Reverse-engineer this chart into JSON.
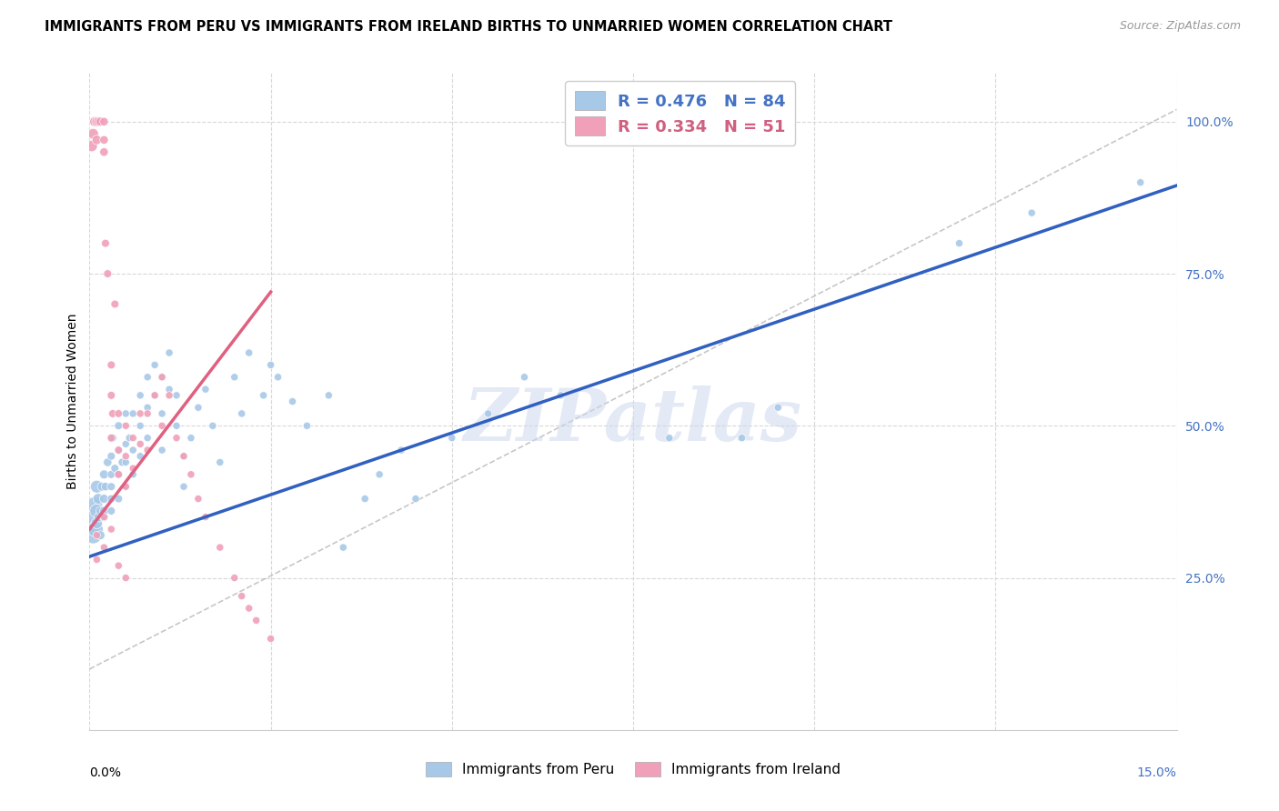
{
  "title": "IMMIGRANTS FROM PERU VS IMMIGRANTS FROM IRELAND BIRTHS TO UNMARRIED WOMEN CORRELATION CHART",
  "source": "Source: ZipAtlas.com",
  "ylabel": "Births to Unmarried Women",
  "xmin": 0.0,
  "xmax": 0.15,
  "ymin": 0.0,
  "ymax": 1.08,
  "blue_color": "#a8c8e8",
  "pink_color": "#f0a0b8",
  "blue_line_color": "#3060c0",
  "pink_line_color": "#e06080",
  "blue_R": 0.476,
  "blue_N": 84,
  "pink_R": 0.334,
  "pink_N": 51,
  "watermark": "ZIPatlas",
  "grid_color": "#d8d8d8",
  "blue_x": [
    0.0003,
    0.0005,
    0.0007,
    0.0008,
    0.001,
    0.001,
    0.001,
    0.0012,
    0.0013,
    0.0015,
    0.0015,
    0.0017,
    0.002,
    0.002,
    0.002,
    0.002,
    0.0022,
    0.0025,
    0.003,
    0.003,
    0.003,
    0.003,
    0.003,
    0.0032,
    0.0035,
    0.004,
    0.004,
    0.004,
    0.004,
    0.0045,
    0.005,
    0.005,
    0.005,
    0.005,
    0.0055,
    0.006,
    0.006,
    0.006,
    0.007,
    0.007,
    0.007,
    0.008,
    0.008,
    0.008,
    0.009,
    0.009,
    0.01,
    0.01,
    0.01,
    0.011,
    0.011,
    0.012,
    0.012,
    0.013,
    0.013,
    0.014,
    0.015,
    0.016,
    0.017,
    0.018,
    0.02,
    0.021,
    0.022,
    0.024,
    0.025,
    0.026,
    0.028,
    0.03,
    0.033,
    0.035,
    0.038,
    0.04,
    0.043,
    0.045,
    0.05,
    0.055,
    0.06,
    0.065,
    0.08,
    0.09,
    0.095,
    0.12,
    0.13,
    0.145
  ],
  "blue_y": [
    0.35,
    0.32,
    0.37,
    0.33,
    0.36,
    0.4,
    0.34,
    0.38,
    0.35,
    0.32,
    0.36,
    0.4,
    0.38,
    0.35,
    0.42,
    0.36,
    0.4,
    0.44,
    0.38,
    0.42,
    0.45,
    0.36,
    0.4,
    0.48,
    0.43,
    0.5,
    0.46,
    0.42,
    0.38,
    0.44,
    0.52,
    0.47,
    0.44,
    0.4,
    0.48,
    0.52,
    0.46,
    0.42,
    0.55,
    0.5,
    0.45,
    0.58,
    0.53,
    0.48,
    0.6,
    0.55,
    0.58,
    0.52,
    0.46,
    0.62,
    0.56,
    0.55,
    0.5,
    0.45,
    0.4,
    0.48,
    0.53,
    0.56,
    0.5,
    0.44,
    0.58,
    0.52,
    0.62,
    0.55,
    0.6,
    0.58,
    0.54,
    0.5,
    0.55,
    0.3,
    0.38,
    0.42,
    0.46,
    0.38,
    0.48,
    0.52,
    0.58,
    0.55,
    0.48,
    0.48,
    0.53,
    0.8,
    0.85,
    0.9
  ],
  "blue_sizes": [
    200,
    180,
    160,
    150,
    120,
    100,
    80,
    70,
    60,
    50,
    50,
    50,
    50,
    50,
    50,
    50,
    45,
    45,
    40,
    40,
    40,
    40,
    40,
    40,
    40,
    40,
    40,
    40,
    40,
    40,
    35,
    35,
    35,
    35,
    35,
    35,
    35,
    35,
    35,
    35,
    35,
    35,
    35,
    35,
    35,
    35,
    35,
    35,
    35,
    35,
    35,
    35,
    35,
    35,
    35,
    35,
    35,
    35,
    35,
    35,
    35,
    35,
    35,
    35,
    35,
    35,
    35,
    35,
    35,
    35,
    35,
    35,
    35,
    35,
    35,
    35,
    35,
    35,
    35,
    35,
    35,
    35,
    35,
    35
  ],
  "pink_x": [
    0.0003,
    0.0005,
    0.0007,
    0.001,
    0.001,
    0.0012,
    0.0015,
    0.002,
    0.002,
    0.002,
    0.0022,
    0.0025,
    0.003,
    0.003,
    0.003,
    0.0032,
    0.0035,
    0.004,
    0.004,
    0.004,
    0.005,
    0.005,
    0.005,
    0.006,
    0.006,
    0.007,
    0.007,
    0.008,
    0.008,
    0.009,
    0.01,
    0.01,
    0.011,
    0.012,
    0.013,
    0.014,
    0.015,
    0.016,
    0.018,
    0.02,
    0.021,
    0.022,
    0.023,
    0.025,
    0.001,
    0.001,
    0.002,
    0.002,
    0.003,
    0.004,
    0.005
  ],
  "pink_y": [
    0.96,
    0.98,
    1.0,
    1.0,
    0.97,
    1.0,
    1.0,
    1.0,
    0.97,
    0.95,
    0.8,
    0.75,
    0.6,
    0.55,
    0.48,
    0.52,
    0.7,
    0.52,
    0.46,
    0.42,
    0.5,
    0.45,
    0.4,
    0.48,
    0.43,
    0.52,
    0.47,
    0.52,
    0.46,
    0.55,
    0.58,
    0.5,
    0.55,
    0.48,
    0.45,
    0.42,
    0.38,
    0.35,
    0.3,
    0.25,
    0.22,
    0.2,
    0.18,
    0.15,
    0.32,
    0.28,
    0.35,
    0.3,
    0.33,
    0.27,
    0.25
  ],
  "pink_sizes": [
    80,
    70,
    60,
    60,
    55,
    50,
    50,
    45,
    45,
    45,
    40,
    40,
    40,
    40,
    40,
    40,
    40,
    38,
    38,
    38,
    35,
    35,
    35,
    35,
    35,
    35,
    35,
    35,
    35,
    35,
    35,
    35,
    35,
    35,
    35,
    35,
    35,
    35,
    35,
    35,
    35,
    35,
    35,
    35,
    35,
    35,
    35,
    35,
    35,
    35,
    35
  ],
  "blue_line_x": [
    0.0,
    0.15
  ],
  "blue_line_y": [
    0.285,
    0.895
  ],
  "pink_line_x": [
    0.0,
    0.025
  ],
  "pink_line_y": [
    0.33,
    0.72
  ],
  "ytick_positions": [
    0.25,
    0.5,
    0.75,
    1.0
  ],
  "ytick_labels": [
    "25.0%",
    "50.0%",
    "75.0%",
    "100.0%"
  ],
  "xtick_positions": [
    0.0,
    0.025,
    0.05,
    0.075,
    0.1,
    0.125,
    0.15
  ]
}
